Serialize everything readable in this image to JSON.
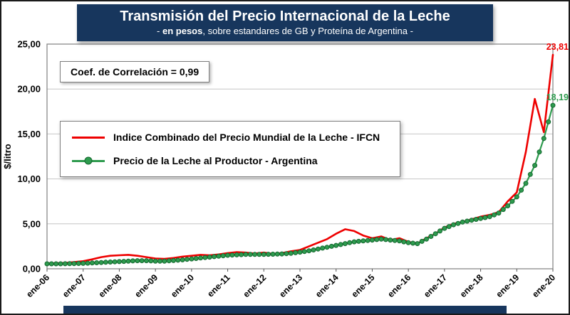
{
  "header": {
    "title": "Transmisión del Precio Internacional de la Leche",
    "subtitle_prefix": "- ",
    "subtitle_bold": "en pesos",
    "subtitle_rest": ", sobre estandares de GB y Proteína de  Argentina -"
  },
  "annotation": {
    "correlation_label": "Coef. de Correlación = 0,99"
  },
  "legend": {
    "items": [
      {
        "label": "Indice Combinado del Precio Mundial de la Leche - IFCN"
      },
      {
        "label": "Precio de la Leche al Productor - Argentina"
      }
    ]
  },
  "colors": {
    "banner": "#17365D",
    "red": "#EE0000",
    "green": "#2E9B4E",
    "green_edge": "#14672F",
    "grid": "#C6C6C6",
    "plot_border": "#808080"
  },
  "chart_data": {
    "type": "line",
    "title": "Transmisión del Precio Internacional de la Leche",
    "subtitle": "- en pesos, sobre estandares de GB y Proteína de Argentina -",
    "xlabel": "",
    "ylabel": "$/litro",
    "ylim": [
      0,
      25
    ],
    "grid": true,
    "legend_position": "upper-left-inside",
    "interval": "quarterly, ene-06 through ene-20",
    "y_ticks": [
      {
        "value": 0,
        "label": "0,00"
      },
      {
        "value": 5,
        "label": "5,00"
      },
      {
        "value": 10,
        "label": "10,00"
      },
      {
        "value": 15,
        "label": "15,00"
      },
      {
        "value": 20,
        "label": "20,00"
      },
      {
        "value": 25,
        "label": "25,00"
      }
    ],
    "x_ticks": [
      "ene-06",
      "ene-07",
      "ene-08",
      "ene-09",
      "ene-10",
      "ene-11",
      "ene-12",
      "ene-13",
      "ene-14",
      "ene-15",
      "ene-16",
      "ene-17",
      "ene-18",
      "ene-19",
      "ene-20"
    ],
    "series": [
      {
        "name": "Indice Combinado del Precio Mundial de la Leche - IFCN",
        "color": "#EE0000",
        "marker": false,
        "end_label": "23,81",
        "values": [
          0.6,
          0.62,
          0.65,
          0.75,
          0.85,
          1.05,
          1.3,
          1.45,
          1.5,
          1.55,
          1.45,
          1.3,
          1.15,
          1.1,
          1.2,
          1.35,
          1.45,
          1.55,
          1.5,
          1.6,
          1.75,
          1.85,
          1.8,
          1.7,
          1.8,
          1.65,
          1.75,
          1.95,
          2.1,
          2.5,
          2.9,
          3.3,
          3.9,
          4.4,
          4.2,
          3.7,
          3.4,
          3.6,
          3.2,
          3.4,
          3.0,
          2.8,
          3.4,
          3.9,
          4.6,
          5.0,
          5.2,
          5.5,
          5.8,
          6.0,
          6.3,
          7.5,
          8.5,
          13.0,
          18.9,
          15.2,
          23.81
        ]
      },
      {
        "name": "Precio de la Leche al Productor - Argentina",
        "color": "#2E9B4E",
        "marker": true,
        "marker_edge": "#14672F",
        "end_label": "18,19",
        "values": [
          0.55,
          0.55,
          0.56,
          0.58,
          0.6,
          0.65,
          0.7,
          0.75,
          0.8,
          0.85,
          0.9,
          0.9,
          0.85,
          0.85,
          0.92,
          1.0,
          1.1,
          1.2,
          1.3,
          1.4,
          1.5,
          1.55,
          1.6,
          1.6,
          1.6,
          1.62,
          1.65,
          1.72,
          1.85,
          2.0,
          2.2,
          2.4,
          2.6,
          2.8,
          3.0,
          3.1,
          3.2,
          3.3,
          3.2,
          3.1,
          2.9,
          2.8,
          3.3,
          3.9,
          4.5,
          4.9,
          5.2,
          5.4,
          5.6,
          5.8,
          6.2,
          7.0,
          8.0,
          9.5,
          11.5,
          14.5,
          18.19
        ]
      }
    ]
  }
}
